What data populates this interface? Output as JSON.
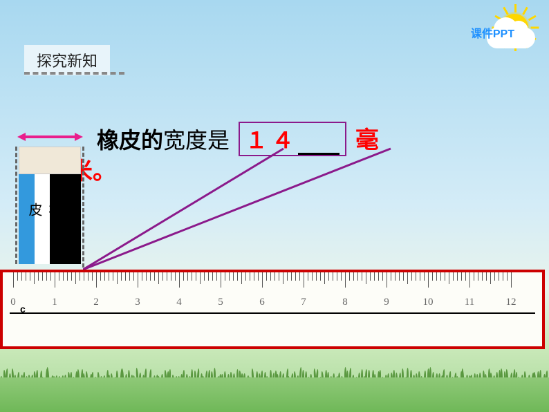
{
  "header": {
    "ppt_label": "课件PPT",
    "section_title": "探究新知"
  },
  "question": {
    "prefix": "橡皮的",
    "middle": "宽度是",
    "answer": "１４",
    "unit1": "毫",
    "unit2": "米。"
  },
  "eraser": {
    "label": "橡皮"
  },
  "ruler": {
    "cm_label": "c",
    "start": 0,
    "end": 12,
    "numbers": [
      0,
      1,
      2,
      3,
      4,
      5,
      6,
      7,
      8,
      9,
      10,
      11,
      12
    ],
    "left_margin": 15,
    "spacing": 60
  },
  "colors": {
    "answer_color": "#ff0000",
    "box_border": "#8b1a8b",
    "ruler_border": "#cc0000",
    "arrow_color": "#e91e8c",
    "callout_color": "#8b1a8b"
  }
}
